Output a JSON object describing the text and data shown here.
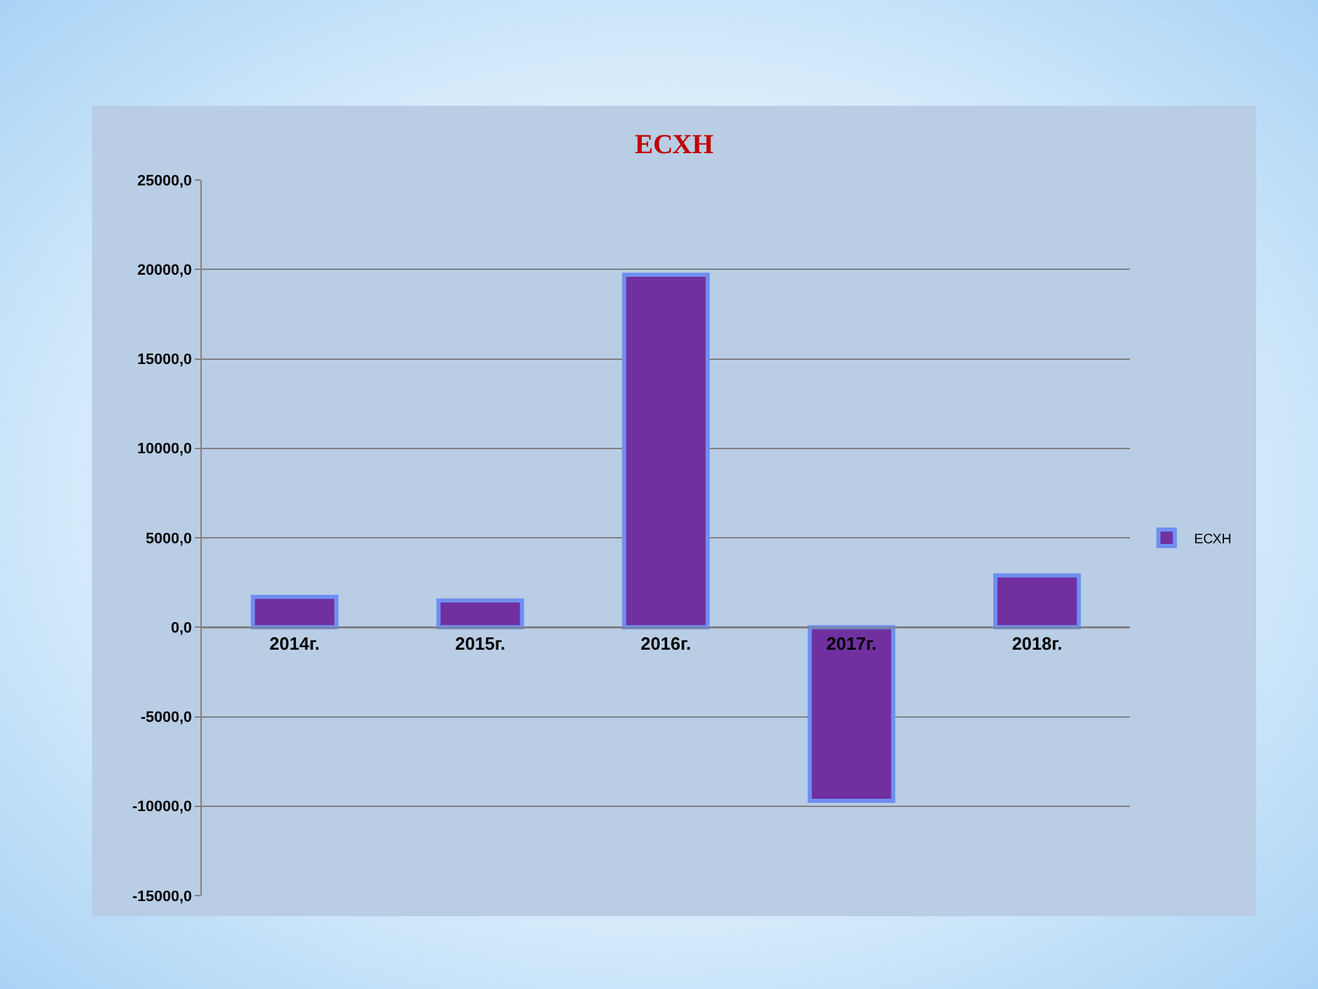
{
  "chart_data": {
    "type": "bar",
    "title": "ЕСХН",
    "categories": [
      "2014г.",
      "2015г.",
      "2016г.",
      "2017г.",
      "2018г."
    ],
    "series": [
      {
        "name": "ЕСХН",
        "color": "#7030a0",
        "values": [
          1700,
          1500,
          19700,
          -9700,
          2900
        ]
      }
    ],
    "ylim": [
      -15000,
      25000
    ],
    "yticks": [
      {
        "value": -15000,
        "label": "-15000,0"
      },
      {
        "value": -10000,
        "label": "-10000,0"
      },
      {
        "value": -5000,
        "label": "-5000,0"
      },
      {
        "value": 0,
        "label": "0,0"
      },
      {
        "value": 5000,
        "label": "5000,0"
      },
      {
        "value": 10000,
        "label": "10000,0"
      },
      {
        "value": 15000,
        "label": "15000,0"
      },
      {
        "value": 20000,
        "label": "20000,0"
      },
      {
        "value": 25000,
        "label": "25000,0"
      }
    ],
    "grid": "y",
    "legend": "right"
  }
}
